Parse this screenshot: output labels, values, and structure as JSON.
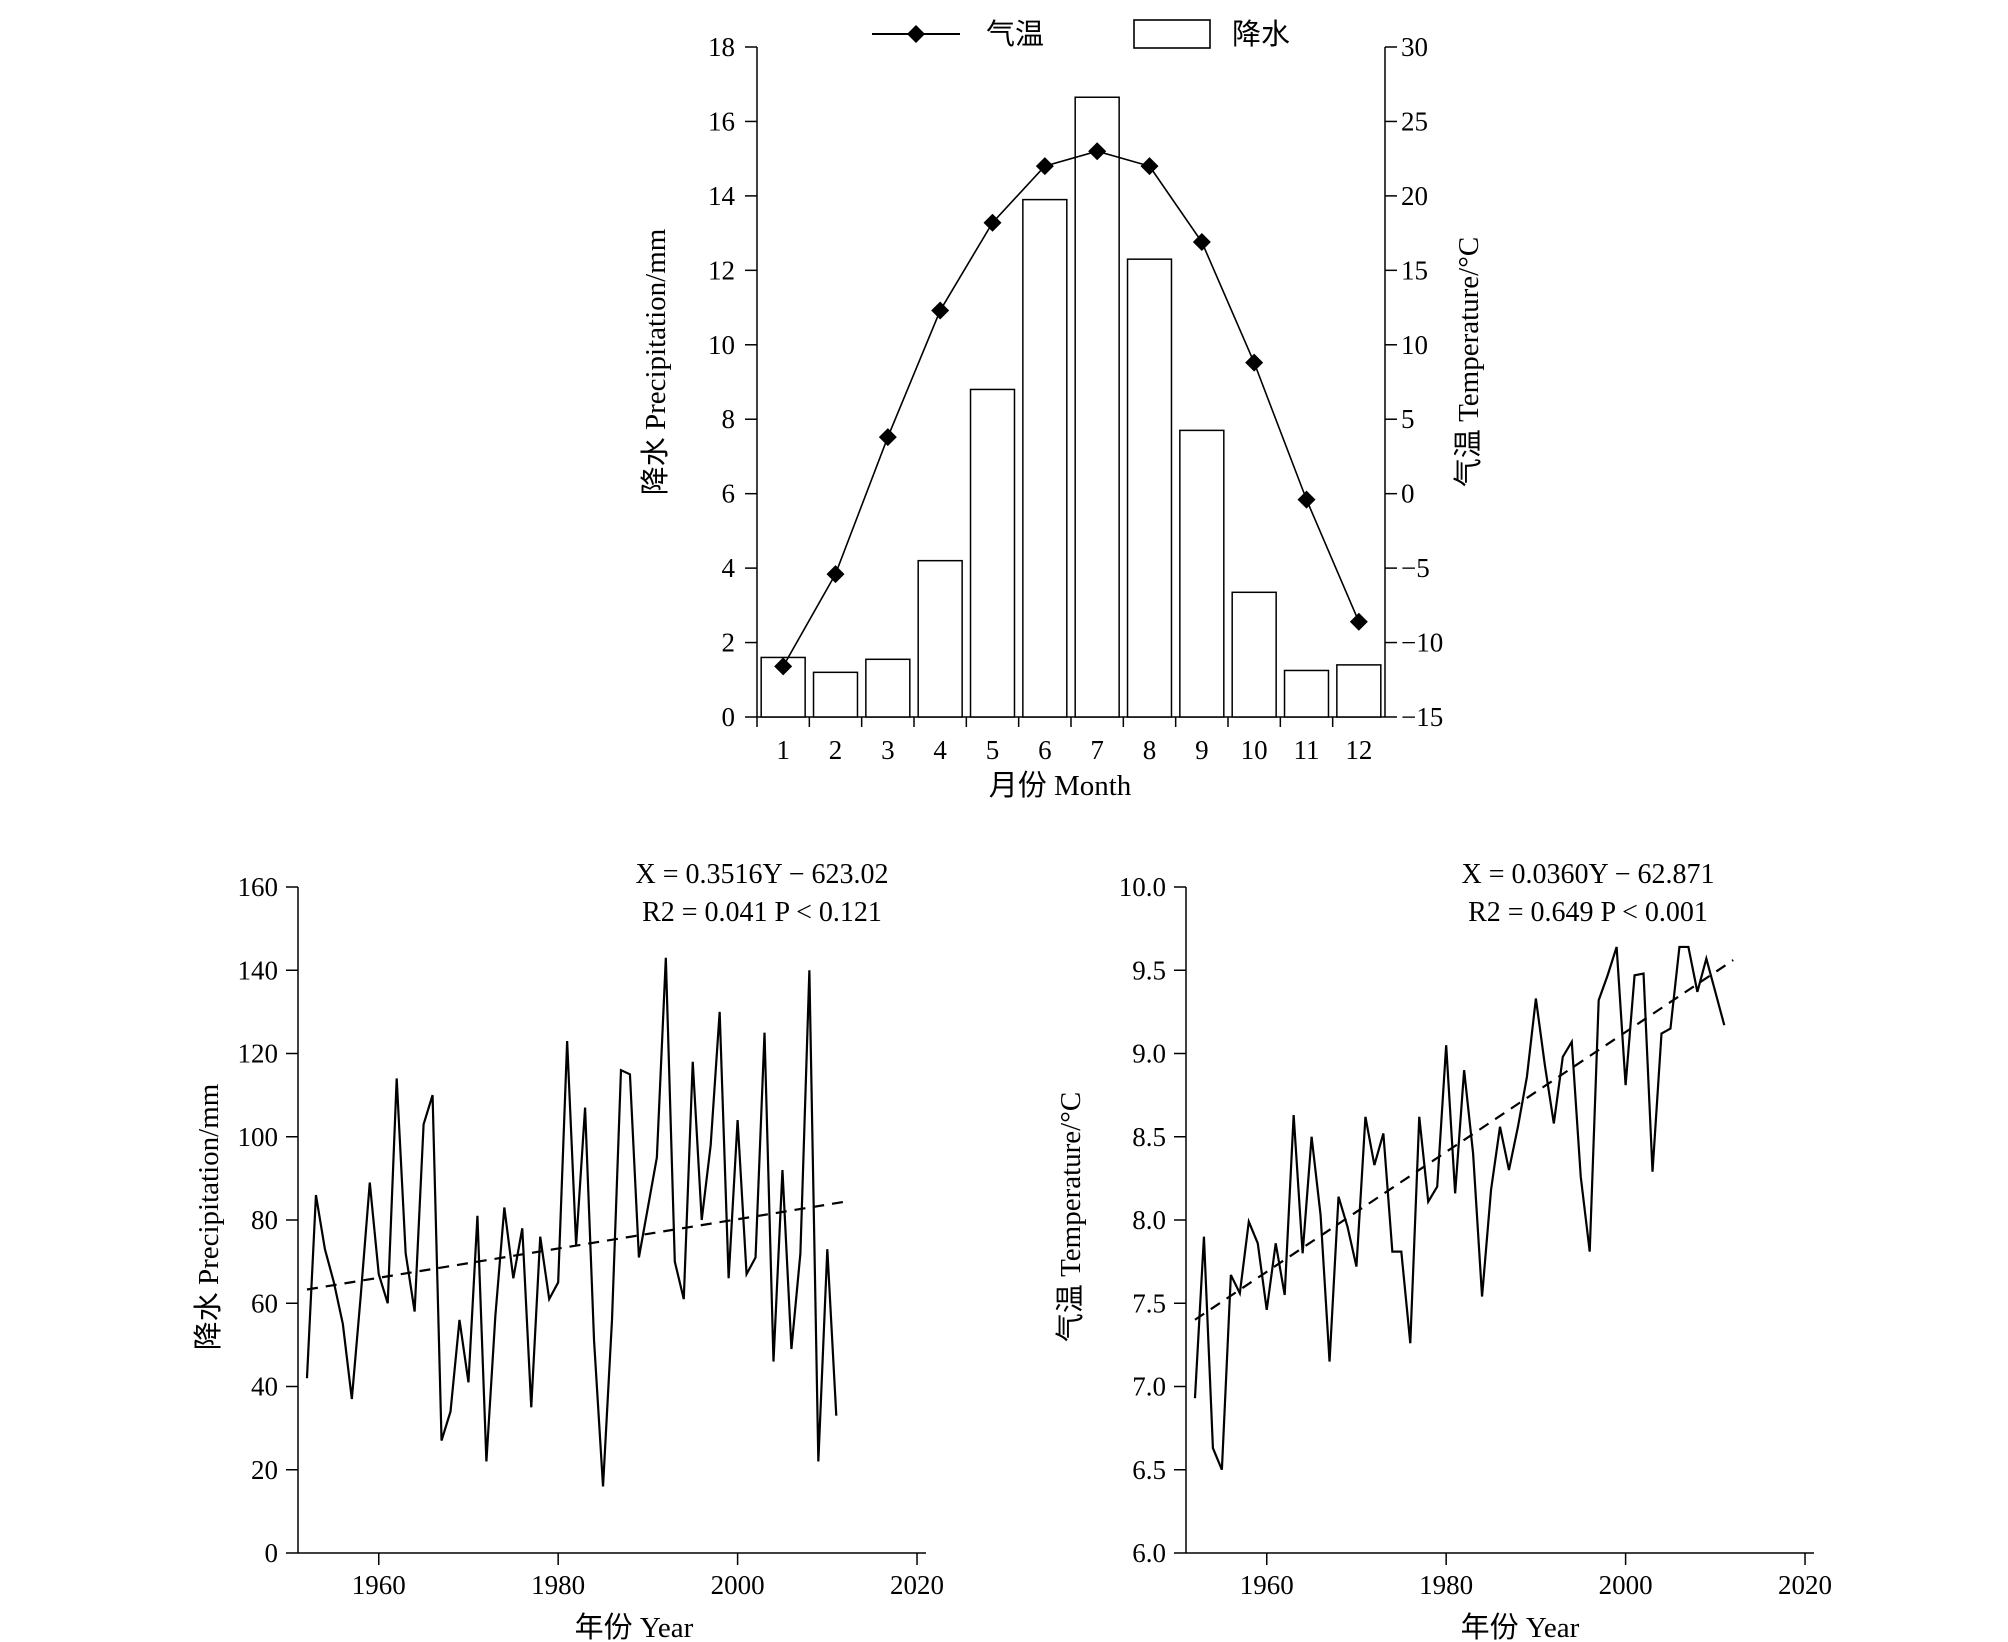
{
  "chart_data": [
    {
      "type": "bar+line",
      "xlabel": "月份 Month",
      "ylabel_left": "降水 Precipitation/mm",
      "ylabel_right": "气温 Temperature/°C",
      "categories": [
        "1",
        "2",
        "3",
        "4",
        "5",
        "6",
        "7",
        "8",
        "9",
        "10",
        "11",
        "12"
      ],
      "ylim_left": [
        0,
        18
      ],
      "ylim_right": [
        -15,
        30
      ],
      "yticks_left": [
        "0",
        "2",
        "4",
        "6",
        "8",
        "10",
        "12",
        "14",
        "16",
        "18"
      ],
      "yticks_right": [
        "−15",
        "−10",
        "−5",
        "0",
        "5",
        "10",
        "15",
        "20",
        "25",
        "30"
      ],
      "legend": {
        "temperature": "气温",
        "precipitation": "降水",
        "placement": "top"
      },
      "series": [
        {
          "name": "降水",
          "kind": "bar",
          "axis": "left",
          "values": [
            1.6,
            1.2,
            1.55,
            4.2,
            8.8,
            13.9,
            16.65,
            12.3,
            7.7,
            3.35,
            1.25,
            1.4
          ]
        },
        {
          "name": "气温",
          "kind": "line",
          "axis": "right",
          "marker": "diamond",
          "values": [
            -11.6,
            -5.4,
            3.8,
            12.3,
            18.2,
            22.0,
            23.0,
            22.0,
            16.9,
            8.8,
            -0.4,
            -8.6
          ]
        }
      ],
      "grid": false
    },
    {
      "type": "line",
      "xlabel": "年份 Year",
      "ylabel": "降水 Precipitation/mm",
      "equation": "X = 0.3516Y − 623.02",
      "stats": "R2 = 0.041    P < 0.121",
      "xlim": [
        1951,
        2021
      ],
      "ylim": [
        0,
        160
      ],
      "xticks": [
        "1960",
        "1980",
        "2000",
        "2020"
      ],
      "yticks": [
        "0",
        "20",
        "40",
        "60",
        "80",
        "100",
        "120",
        "140",
        "160"
      ],
      "trend": {
        "slope": 0.3516,
        "intercept": -623.02,
        "x_range": [
          1952,
          2012
        ],
        "style": "dashed"
      },
      "x": [
        1952,
        1953,
        1954,
        1955,
        1956,
        1957,
        1958,
        1959,
        1960,
        1961,
        1962,
        1963,
        1964,
        1965,
        1966,
        1967,
        1968,
        1969,
        1970,
        1971,
        1972,
        1973,
        1974,
        1975,
        1976,
        1977,
        1978,
        1979,
        1980,
        1981,
        1982,
        1983,
        1984,
        1985,
        1986,
        1987,
        1988,
        1989,
        1990,
        1991,
        1992,
        1993,
        1994,
        1995,
        1996,
        1997,
        1998,
        1999,
        2000,
        2001,
        2002,
        2003,
        2004,
        2005,
        2006,
        2007,
        2008,
        2009,
        2010,
        2011
      ],
      "values": [
        42,
        86,
        73,
        65,
        55,
        37,
        62,
        89,
        67,
        60,
        114,
        72,
        58,
        103,
        110,
        27,
        34,
        56,
        41,
        81,
        22,
        57,
        83,
        66,
        78,
        35,
        76,
        61,
        65,
        123,
        74,
        107,
        51,
        16,
        56,
        116,
        115,
        71,
        83,
        95,
        143,
        70,
        61,
        118,
        80,
        98,
        130,
        66,
        104,
        67,
        71,
        125,
        46,
        92,
        49,
        72,
        140,
        22,
        73,
        33
      ],
      "grid": false
    },
    {
      "type": "line",
      "xlabel": "年份 Year",
      "ylabel": "气温 Temperature/°C",
      "equation": "X = 0.0360Y − 62.871",
      "stats": "R2 = 0.649    P < 0.001",
      "xlim": [
        1951,
        2021
      ],
      "ylim": [
        6.0,
        10.0
      ],
      "xticks": [
        "1960",
        "1980",
        "2000",
        "2020"
      ],
      "yticks": [
        "6.0",
        "6.5",
        "7.0",
        "7.5",
        "8.0",
        "8.5",
        "9.0",
        "9.5",
        "10.0"
      ],
      "trend": {
        "slope": 0.036,
        "intercept": -62.871,
        "x_range": [
          1952,
          2012
        ],
        "style": "dashed"
      },
      "x": [
        1952,
        1953,
        1954,
        1955,
        1956,
        1957,
        1958,
        1959,
        1960,
        1961,
        1962,
        1963,
        1964,
        1965,
        1966,
        1967,
        1968,
        1969,
        1970,
        1971,
        1972,
        1973,
        1974,
        1975,
        1976,
        1977,
        1978,
        1979,
        1980,
        1981,
        1982,
        1983,
        1984,
        1985,
        1986,
        1987,
        1988,
        1989,
        1990,
        1991,
        1992,
        1993,
        1994,
        1995,
        1996,
        1997,
        1998,
        1999,
        2000,
        2001,
        2002,
        2003,
        2004,
        2005,
        2006,
        2007,
        2008,
        2009,
        2010,
        2011
      ],
      "values": [
        6.93,
        7.9,
        6.63,
        6.5,
        7.67,
        7.56,
        7.99,
        7.86,
        7.46,
        7.86,
        7.55,
        8.63,
        7.8,
        8.5,
        8.03,
        7.15,
        8.14,
        7.96,
        7.72,
        8.62,
        8.33,
        8.52,
        7.81,
        7.81,
        7.26,
        8.62,
        8.11,
        8.2,
        9.05,
        8.16,
        8.9,
        8.4,
        7.54,
        8.18,
        8.56,
        8.3,
        8.56,
        8.86,
        9.33,
        8.93,
        8.58,
        8.98,
        9.07,
        8.26,
        7.81,
        9.32,
        9.47,
        9.64,
        8.81,
        9.47,
        9.48,
        8.29,
        9.12,
        9.15,
        9.64,
        9.64,
        9.37,
        9.57,
        9.37,
        9.17
      ],
      "grid": false
    }
  ]
}
